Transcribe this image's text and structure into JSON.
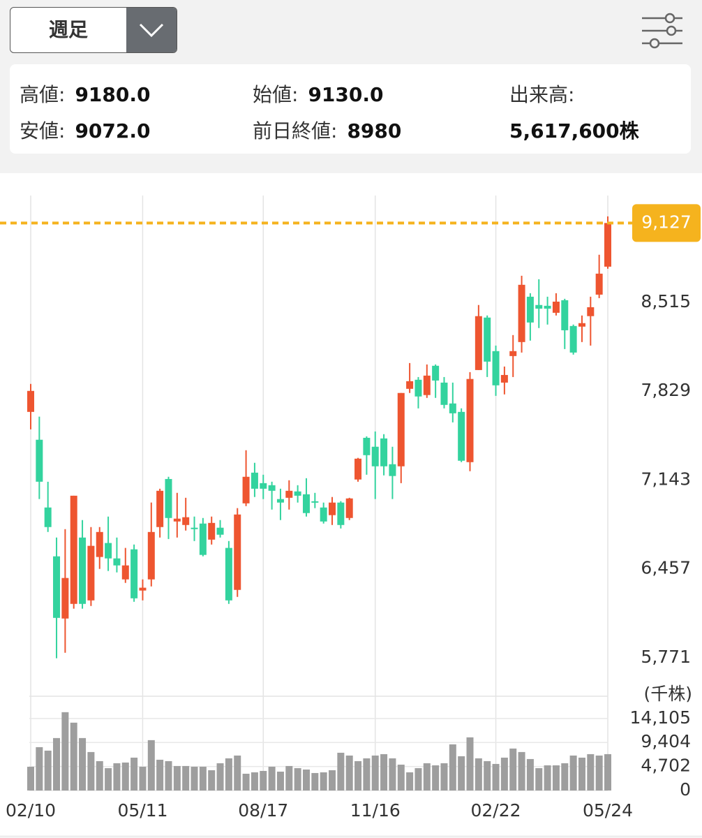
{
  "header": {
    "dropdown": "週足"
  },
  "info": {
    "items": [
      {
        "label": "高値:",
        "value": "9180.0"
      },
      {
        "label": "始値:",
        "value": "9130.0"
      },
      {
        "label": "出来高:",
        "value": "5,617,600株"
      },
      {
        "label": "安値:",
        "value": "9072.0"
      },
      {
        "label": "前日終値:",
        "value": "8980"
      }
    ]
  },
  "chart_data": {
    "type": "candlestick",
    "up_color": "#ee5530",
    "down_color": "#33d39e",
    "xticks": [
      {
        "value": 0,
        "label": "02/10"
      },
      {
        "value": 13,
        "label": "05/11"
      },
      {
        "value": 27,
        "label": "08/17"
      },
      {
        "value": 40,
        "label": "11/16"
      },
      {
        "value": 54,
        "label": "02/22"
      },
      {
        "value": 67,
        "label": "05/24"
      }
    ],
    "xlim": [
      -0.2,
      67.2
    ],
    "ylim": [
      5485,
      9339
    ],
    "yticks": [
      {
        "value": 8515,
        "label": "8,515"
      },
      {
        "value": 7829,
        "label": "7,829"
      },
      {
        "value": 7143,
        "label": "7,143"
      },
      {
        "value": 6457,
        "label": "6,457"
      },
      {
        "value": 5771,
        "label": "5,771"
      }
    ],
    "current_price": {
      "value": 9127,
      "label": "9,127",
      "color": "#f5b31e"
    },
    "open": [
      7669,
      7454,
      6931,
      6554,
      6074,
      6187,
      6699,
      6214,
      6549,
      6657,
      6538,
      6376,
      6608,
      6290,
      6376,
      6780,
      7151,
      6823,
      6796,
      6775,
      6807,
      6683,
      6775,
      6619,
      6295,
      6963,
      7200,
      7119,
      7103,
      6996,
      7006,
      7055,
      7033,
      6979,
      6931,
      6872,
      6969,
      6850,
      7147,
      7469,
      7400,
      7464,
      7265,
      7249,
      7847,
      7917,
      7799,
      8025,
      7895,
      7734,
      7669,
      7281,
      7992,
      8397,
      8138,
      7895,
      8100,
      8208,
      8558,
      8494,
      8488,
      8434,
      8531,
      8332,
      8327,
      8408,
      8574,
      8790
    ],
    "high": [
      7885,
      7632,
      7130,
      6699,
      6764,
      7022,
      6834,
      6780,
      6780,
      6861,
      6699,
      6619,
      6645,
      6376,
      6969,
      7076,
      7168,
      7044,
      7006,
      6861,
      6850,
      6861,
      6834,
      6672,
      6926,
      7373,
      7276,
      7184,
      7130,
      7076,
      7141,
      7103,
      7157,
      7044,
      6969,
      7012,
      6980,
      7006,
      7314,
      7480,
      7518,
      7497,
      7400,
      7815,
      8046,
      7938,
      8035,
      8035,
      7938,
      7895,
      7696,
      7976,
      8494,
      8413,
      8181,
      8019,
      8262,
      8720,
      8585,
      8693,
      8558,
      8585,
      8542,
      8343,
      8413,
      8558,
      8882,
      9178
    ],
    "low": [
      7534,
      6996,
      6742,
      5767,
      5810,
      6150,
      6150,
      6171,
      6457,
      6441,
      6430,
      6349,
      6203,
      6214,
      6322,
      6699,
      6688,
      6699,
      6753,
      6672,
      6554,
      6645,
      6699,
      6187,
      6241,
      6942,
      7012,
      6996,
      6915,
      6834,
      6915,
      6969,
      6861,
      6926,
      6807,
      6796,
      6769,
      6834,
      7130,
      7184,
      6996,
      7179,
      6996,
      7119,
      7815,
      7696,
      7777,
      7777,
      7696,
      7588,
      7281,
      7211,
      7992,
      7938,
      7793,
      7804,
      7938,
      8127,
      8219,
      8316,
      8343,
      8413,
      8154,
      8111,
      8208,
      8181,
      8547,
      8774
    ],
    "close": [
      7831,
      7130,
      6780,
      6079,
      6387,
      7022,
      6187,
      6635,
      6742,
      6538,
      6484,
      6484,
      6230,
      6312,
      6742,
      7060,
      6850,
      6845,
      6856,
      6764,
      6565,
      6812,
      6721,
      6214,
      6877,
      7168,
      7076,
      7076,
      7060,
      6969,
      7060,
      7022,
      6888,
      6969,
      6823,
      6969,
      6796,
      7001,
      7308,
      7335,
      7249,
      7249,
      7174,
      7815,
      7906,
      7788,
      7949,
      7911,
      7723,
      7658,
      7292,
      7923,
      8408,
      8057,
      7874,
      7954,
      8138,
      8650,
      8359,
      8466,
      8466,
      8520,
      8299,
      8127,
      8354,
      8477,
      8736,
      9127
    ],
    "volume": {
      "unit": "(千株)",
      "color": "#9e9e9e",
      "ylim": [
        0,
        18466
      ],
      "yticks": [
        {
          "value": 14105,
          "label": "14,105"
        },
        {
          "value": 9404,
          "label": "9,404"
        },
        {
          "value": 4702,
          "label": "4,702"
        },
        0
      ],
      "values": [
        4658,
        8494,
        7809,
        10275,
        15344,
        13289,
        10275,
        7535,
        5754,
        4384,
        5343,
        5480,
        6439,
        4658,
        9864,
        6028,
        5754,
        4795,
        4795,
        4658,
        4658,
        3973,
        5343,
        6302,
        6850,
        3288,
        3562,
        3836,
        4658,
        3699,
        4795,
        4384,
        4110,
        3425,
        3562,
        3973,
        7398,
        6850,
        5754,
        6302,
        6850,
        7124,
        6302,
        5069,
        3562,
        4384,
        5343,
        4932,
        5343,
        9042,
        6713,
        10412,
        6302,
        5754,
        5206,
        6439,
        8220,
        7535,
        6165,
        4384,
        4932,
        4932,
        5343,
        6850,
        6439,
        7124,
        6850,
        7124
      ]
    }
  }
}
